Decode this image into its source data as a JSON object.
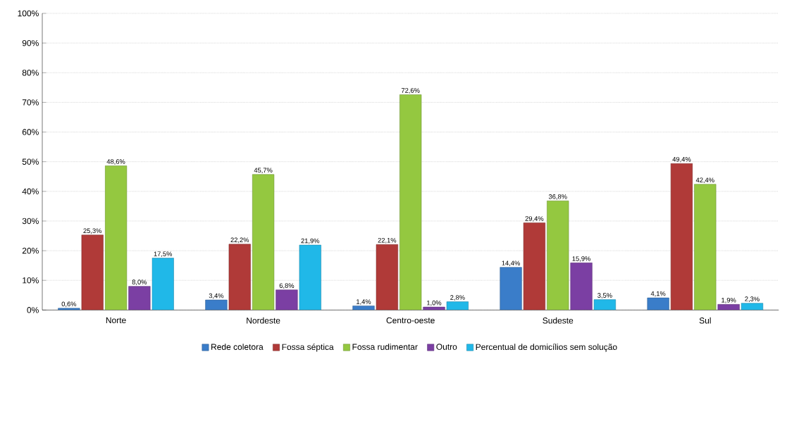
{
  "chart_data": {
    "type": "bar",
    "categories": [
      "Norte",
      "Nordeste",
      "Centro-oeste",
      "Sudeste",
      "Sul"
    ],
    "series": [
      {
        "name": "Rede coletora",
        "color": "#3a7dc9",
        "values": [
          0.6,
          3.4,
          1.4,
          14.4,
          4.1
        ],
        "value_labels": [
          "0,6%",
          "3,4%",
          "1,4%",
          "14,4%",
          "4,1%"
        ]
      },
      {
        "name": "Fossa séptica",
        "color": "#b03a38",
        "values": [
          25.3,
          22.2,
          22.1,
          29.4,
          49.4
        ],
        "value_labels": [
          "25,3%",
          "22,2%",
          "22,1%",
          "29,4%",
          "49,4%"
        ]
      },
      {
        "name": "Fossa rudimentar",
        "color": "#94c840",
        "values": [
          48.6,
          45.7,
          72.6,
          36.8,
          42.4
        ],
        "value_labels": [
          "48,6%",
          "45,7%",
          "72,6%",
          "36,8%",
          "42,4%"
        ]
      },
      {
        "name": "Outro",
        "color": "#7b3fa3",
        "values": [
          8.0,
          6.8,
          1.0,
          15.9,
          1.9
        ],
        "value_labels": [
          "8,0%",
          "6,8%",
          "1,0%",
          "15,9%",
          "1,9%"
        ]
      },
      {
        "name": "Percentual de domicílios sem solução",
        "color": "#20b8e8",
        "values": [
          17.5,
          21.9,
          2.8,
          3.5,
          2.3
        ],
        "value_labels": [
          "17,5%",
          "21,9%",
          "2,8%",
          "3,5%",
          "2,3%"
        ]
      }
    ],
    "ylim": [
      0,
      100
    ],
    "yticks": [
      {
        "value": 0,
        "label": "0%"
      },
      {
        "value": 10,
        "label": "10%"
      },
      {
        "value": 20,
        "label": "20%"
      },
      {
        "value": 30,
        "label": "30%"
      },
      {
        "value": 40,
        "label": "40%"
      },
      {
        "value": 50,
        "label": "50%"
      },
      {
        "value": 60,
        "label": "60%"
      },
      {
        "value": 70,
        "label": "70%"
      },
      {
        "value": 80,
        "label": "80%"
      },
      {
        "value": 90,
        "label": "90%"
      },
      {
        "value": 100,
        "label": "100%"
      }
    ],
    "grid": "y",
    "legend": "bottom"
  }
}
